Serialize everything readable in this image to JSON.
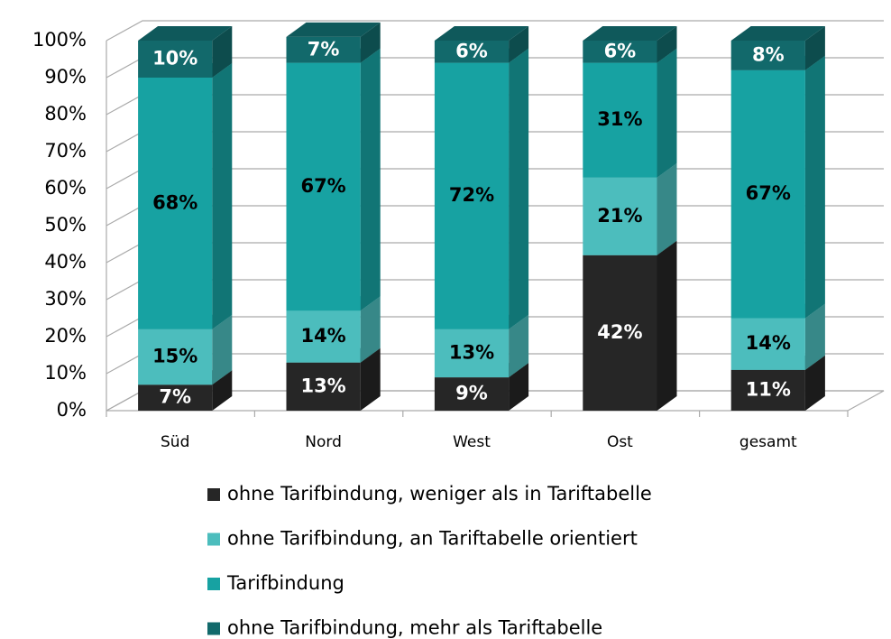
{
  "chart_data": {
    "type": "bar3d_stacked",
    "categories": [
      "Süd",
      "Nord",
      "West",
      "Ost",
      "gesamt"
    ],
    "series": [
      {
        "name": "ohne Tarifbindung, weniger als in Tariftabelle",
        "color": "#262626",
        "label_color": "#ffffff",
        "values": [
          7,
          13,
          9,
          42,
          11
        ],
        "value_labels": [
          "7%",
          "13%",
          "9%",
          "42%",
          "11%"
        ]
      },
      {
        "name": "ohne Tarifbindung, an Tariftabelle orientiert",
        "color": "#4cbdbd",
        "label_color": "#000000",
        "values": [
          15,
          14,
          13,
          21,
          14
        ],
        "value_labels": [
          "15%",
          "14%",
          "13%",
          "21%",
          "14%"
        ]
      },
      {
        "name": "Tarifbindung",
        "color": "#17a2a2",
        "label_color": "#000000",
        "values": [
          68,
          67,
          72,
          31,
          67
        ],
        "value_labels": [
          "68%",
          "67%",
          "72%",
          "31%",
          "67%"
        ]
      },
      {
        "name": "ohne Tarifbindung, mehr als Tariftabelle",
        "color": "#12696b",
        "label_color": "#ffffff",
        "values": [
          10,
          7,
          6,
          6,
          8
        ],
        "value_labels": [
          "10%",
          "7%",
          "6%",
          "6%",
          "8%"
        ]
      }
    ],
    "ylim": [
      0,
      100
    ],
    "yticks": [
      {
        "value": 0,
        "label": "0%"
      },
      {
        "value": 10,
        "label": "10%"
      },
      {
        "value": 20,
        "label": "20%"
      },
      {
        "value": 30,
        "label": "30%"
      },
      {
        "value": 40,
        "label": "40%"
      },
      {
        "value": 50,
        "label": "50%"
      },
      {
        "value": 60,
        "label": "60%"
      },
      {
        "value": 70,
        "label": "70%"
      },
      {
        "value": 80,
        "label": "80%"
      },
      {
        "value": 90,
        "label": "90%"
      },
      {
        "value": 100,
        "label": "100%"
      }
    ],
    "grid": true
  }
}
